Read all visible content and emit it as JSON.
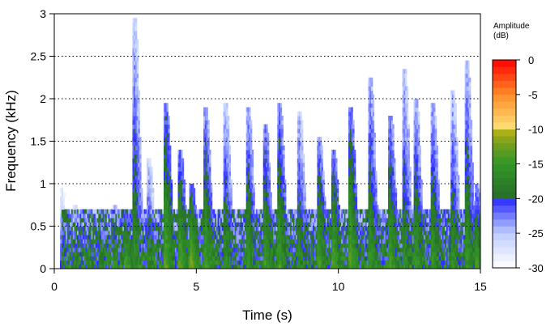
{
  "chart_data": {
    "type": "heatmap",
    "title": "",
    "xlabel": "Time (s)",
    "ylabel": "Frequency (kHz)",
    "xlim": [
      0,
      15
    ],
    "ylim": [
      0,
      3
    ],
    "x_ticks": [
      0,
      5,
      10,
      15
    ],
    "x_tick_labels": [
      "0",
      "5",
      "10",
      "15"
    ],
    "y_ticks": [
      0,
      0.5,
      1,
      1.5,
      2,
      2.5,
      3
    ],
    "y_tick_labels": [
      "0",
      "0.5",
      "1",
      "1.5",
      "2",
      "2.5",
      "3"
    ],
    "grid": "horizontal dotted",
    "colorbar": {
      "title_line1": "Amplitude",
      "title_line2": "(dB)",
      "range": [
        -30,
        0
      ],
      "ticks": [
        0,
        -5,
        -10,
        -15,
        -20,
        -25,
        -30
      ],
      "tick_labels": [
        "0",
        "-5",
        "-10",
        "-15",
        "-20",
        "-25",
        "-30"
      ],
      "placement": "right"
    },
    "colors": {
      "background": "#ffffff",
      "grid": "#000000",
      "low": "#ffffff",
      "blue": "#3030ff",
      "green": "#2e8b2e",
      "olive": "#b0b020",
      "yellow": "#ffd060",
      "orange": "#ff8030",
      "red": "#ff0000"
    },
    "events": [
      {
        "t": 0.25,
        "fmax": 0.95,
        "level": -19
      },
      {
        "t": 0.7,
        "fmax": 0.75,
        "level": -18
      },
      {
        "t": 1.2,
        "fmax": 0.7,
        "level": -17
      },
      {
        "t": 1.6,
        "fmax": 0.7,
        "level": -17
      },
      {
        "t": 2.1,
        "fmax": 0.75,
        "level": -16
      },
      {
        "t": 2.5,
        "fmax": 0.7,
        "level": -13
      },
      {
        "t": 2.8,
        "fmax": 2.9,
        "level": -16
      },
      {
        "t": 3.3,
        "fmax": 1.3,
        "level": -17
      },
      {
        "t": 3.9,
        "fmax": 1.95,
        "level": -13
      },
      {
        "t": 4.4,
        "fmax": 1.4,
        "level": -13
      },
      {
        "t": 4.8,
        "fmax": 1.0,
        "level": -12
      },
      {
        "t": 5.3,
        "fmax": 1.9,
        "level": -14
      },
      {
        "t": 6.0,
        "fmax": 1.95,
        "level": -16
      },
      {
        "t": 6.8,
        "fmax": 1.9,
        "level": -15
      },
      {
        "t": 7.4,
        "fmax": 1.7,
        "level": -14
      },
      {
        "t": 7.9,
        "fmax": 1.95,
        "level": -14
      },
      {
        "t": 8.6,
        "fmax": 1.85,
        "level": -16
      },
      {
        "t": 9.3,
        "fmax": 1.55,
        "level": -14
      },
      {
        "t": 9.8,
        "fmax": 1.4,
        "level": -13
      },
      {
        "t": 10.4,
        "fmax": 1.9,
        "level": -13
      },
      {
        "t": 11.1,
        "fmax": 2.2,
        "level": -15
      },
      {
        "t": 11.8,
        "fmax": 1.8,
        "level": -14
      },
      {
        "t": 12.3,
        "fmax": 2.3,
        "level": -16
      },
      {
        "t": 12.7,
        "fmax": 2.0,
        "level": -15
      },
      {
        "t": 13.3,
        "fmax": 1.95,
        "level": -15
      },
      {
        "t": 14.0,
        "fmax": 2.1,
        "level": -16
      },
      {
        "t": 14.5,
        "fmax": 2.4,
        "level": -15
      },
      {
        "t": 14.85,
        "fmax": 1.0,
        "level": -14
      }
    ]
  }
}
